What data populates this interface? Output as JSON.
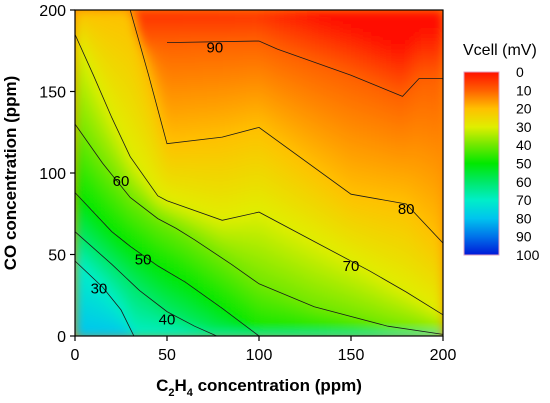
{
  "chart_data": {
    "type": "heatmap",
    "subtype": "filled-contour",
    "title": "",
    "xlabel_main": "C",
    "xlabel_sub": "2",
    "xlabel_mid": "H",
    "xlabel_sub2": "4",
    "xlabel_tail": " concentration (ppm)",
    "ylabel": "CO concentration (ppm)",
    "xlim": [
      0,
      200
    ],
    "ylim": [
      0,
      200
    ],
    "x_ticks": [
      0,
      50,
      100,
      150,
      200
    ],
    "y_ticks": [
      0,
      50,
      100,
      150,
      200
    ],
    "x_tick_labels": [
      "0",
      "50",
      "100",
      "150",
      "200"
    ],
    "y_tick_labels": [
      "0",
      "50",
      "100",
      "150",
      "200"
    ],
    "colorbar": {
      "title": "Vcell (mV)",
      "min": 0,
      "max": 100,
      "ticks": [
        0,
        10,
        20,
        30,
        40,
        50,
        60,
        70,
        80,
        90,
        100
      ],
      "tick_labels": [
        "0",
        "10",
        "20",
        "30",
        "40",
        "50",
        "60",
        "70",
        "80",
        "90",
        "100"
      ],
      "colors": [
        "#0018d8",
        "#0072ea",
        "#00c4ee",
        "#00eec8",
        "#00e868",
        "#00e800",
        "#70e800",
        "#e0ee00",
        "#ffc000",
        "#ff6000",
        "#ff1000"
      ]
    },
    "contours": [
      {
        "level": 30,
        "label": "30",
        "label_at": [
          13,
          29
        ],
        "points": [
          [
            0,
            46
          ],
          [
            15,
            30
          ],
          [
            25,
            16
          ],
          [
            32,
            0
          ]
        ]
      },
      {
        "level": 40,
        "label": "40",
        "label_at": [
          50,
          10
        ],
        "points": [
          [
            0,
            64
          ],
          [
            20,
            44
          ],
          [
            35,
            28
          ],
          [
            50,
            15
          ],
          [
            65,
            6
          ],
          [
            77,
            0
          ]
        ]
      },
      {
        "level": 50,
        "label": "50",
        "label_at": [
          37,
          47
        ],
        "points": [
          [
            0,
            88
          ],
          [
            20,
            64
          ],
          [
            30,
            55
          ],
          [
            45,
            43
          ],
          [
            60,
            33
          ],
          [
            80,
            17
          ],
          [
            100,
            0
          ]
        ]
      },
      {
        "level": 60,
        "label": "60",
        "label_at": [
          25,
          95
        ],
        "points": [
          [
            0,
            130
          ],
          [
            15,
            106
          ],
          [
            30,
            85
          ],
          [
            45,
            72
          ],
          [
            55,
            66
          ],
          [
            65,
            59
          ],
          [
            85,
            44
          ],
          [
            100,
            32
          ],
          [
            130,
            18
          ],
          [
            170,
            6
          ],
          [
            200,
            1
          ]
        ]
      },
      {
        "level": 70,
        "label": "70",
        "label_at": [
          150,
          43
        ],
        "points": [
          [
            0,
            185
          ],
          [
            10,
            160
          ],
          [
            20,
            134
          ],
          [
            30,
            110
          ],
          [
            45,
            86
          ],
          [
            50,
            83
          ],
          [
            80,
            71
          ],
          [
            100,
            76
          ],
          [
            130,
            58
          ],
          [
            160,
            40
          ],
          [
            180,
            27
          ],
          [
            200,
            13
          ]
        ]
      },
      {
        "level": 80,
        "label": "80",
        "label_at": [
          180,
          78
        ],
        "points": [
          [
            30,
            200
          ],
          [
            40,
            160
          ],
          [
            50,
            118
          ],
          [
            80,
            122
          ],
          [
            100,
            128
          ],
          [
            150,
            87
          ],
          [
            180,
            81
          ],
          [
            200,
            57
          ]
        ]
      },
      {
        "level": 90,
        "label": "90",
        "label_at": [
          76,
          177
        ],
        "points": [
          [
            50,
            180
          ],
          [
            100,
            181
          ],
          [
            110,
            176
          ],
          [
            150,
            160
          ],
          [
            178,
            147
          ],
          [
            187,
            158
          ],
          [
            200,
            158
          ]
        ]
      }
    ]
  }
}
